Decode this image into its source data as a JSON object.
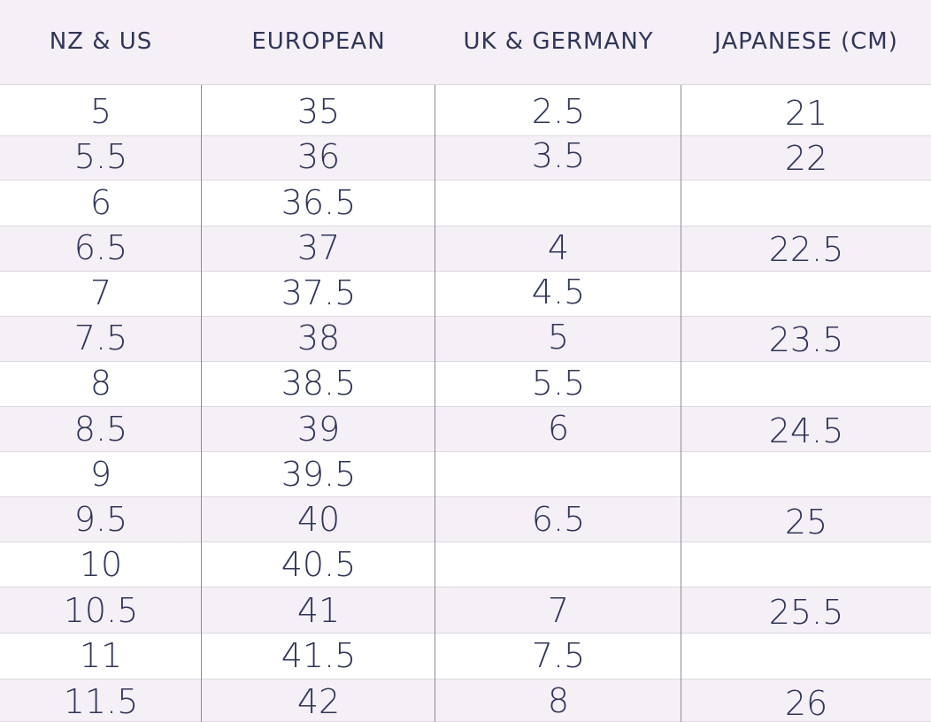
{
  "headers": [
    "NZ & US",
    "EUROPEAN",
    "UK & GERMANY",
    "JAPANESE (CM)"
  ],
  "rows": [
    [
      "5",
      "35",
      "2.5",
      "21"
    ],
    [
      "5.5",
      "36",
      "3.5",
      "22"
    ],
    [
      "6",
      "36.5",
      "",
      ""
    ],
    [
      "6.5",
      "37",
      "4",
      "22.5"
    ],
    [
      "7",
      "37.5",
      "4.5",
      ""
    ],
    [
      "7.5",
      "38",
      "5",
      "23.5"
    ],
    [
      "8",
      "38.5",
      "5.5",
      ""
    ],
    [
      "8.5",
      "39",
      "6",
      "24.5"
    ],
    [
      "9",
      "39.5",
      "",
      ""
    ],
    [
      "9.5",
      "40",
      "6.5",
      "25"
    ],
    [
      "10",
      "40.5",
      "",
      ""
    ],
    [
      "10.5",
      "41",
      "7",
      "25.5"
    ],
    [
      "11",
      "41.5",
      "7.5",
      ""
    ],
    [
      "11.5",
      "42",
      "8",
      "26"
    ]
  ],
  "colors": {
    "text": "#2f355a",
    "stripe": "#f5f0f6",
    "background": "#ffffff"
  }
}
